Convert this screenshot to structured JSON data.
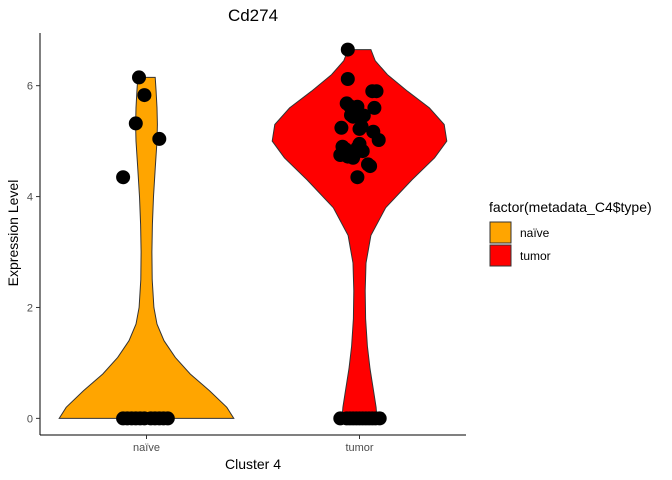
{
  "chart_data": {
    "type": "violin",
    "title": "Cd274",
    "xlabel": "Cluster 4",
    "ylabel": "Expression Level",
    "ylim": [
      -0.3,
      6.95
    ],
    "yticks": [
      0,
      2,
      4,
      6
    ],
    "categories": [
      "naïve",
      "tumor"
    ],
    "legend": {
      "title": "factor(metadata_C4$type)",
      "position": "right",
      "items": [
        {
          "label": "naïve",
          "color": "#FFA500"
        },
        {
          "label": "tumor",
          "color": "#FF0000"
        }
      ]
    },
    "groups": [
      {
        "name": "naïve",
        "color": "#FFA500",
        "max": 6.15,
        "density_profile": [
          [
            0.0,
            1.0
          ],
          [
            0.2,
            0.92
          ],
          [
            0.5,
            0.72
          ],
          [
            0.8,
            0.5
          ],
          [
            1.1,
            0.33
          ],
          [
            1.4,
            0.2
          ],
          [
            1.7,
            0.12
          ],
          [
            2.0,
            0.085
          ],
          [
            2.5,
            0.065
          ],
          [
            3.0,
            0.062
          ],
          [
            3.5,
            0.068
          ],
          [
            4.0,
            0.08
          ],
          [
            4.5,
            0.1
          ],
          [
            5.0,
            0.12
          ],
          [
            5.3,
            0.125
          ],
          [
            5.6,
            0.12
          ],
          [
            5.9,
            0.11
          ],
          [
            6.15,
            0.1
          ]
        ],
        "points": [
          {
            "jitter": -0.22,
            "y": 4.35
          },
          {
            "jitter": -0.07,
            "y": 6.15
          },
          {
            "jitter": -0.1,
            "y": 5.32
          },
          {
            "jitter": -0.02,
            "y": 5.83
          },
          {
            "jitter": 0.12,
            "y": 5.04
          },
          {
            "jitter": -0.22,
            "y": 0
          },
          {
            "jitter": -0.18,
            "y": 0
          },
          {
            "jitter": -0.14,
            "y": 0
          },
          {
            "jitter": -0.1,
            "y": 0
          },
          {
            "jitter": -0.06,
            "y": 0
          },
          {
            "jitter": -0.02,
            "y": 0
          },
          {
            "jitter": 0.04,
            "y": 0
          },
          {
            "jitter": 0.08,
            "y": 0
          },
          {
            "jitter": 0.12,
            "y": 0
          },
          {
            "jitter": 0.16,
            "y": 0
          },
          {
            "jitter": 0.2,
            "y": 0
          }
        ]
      },
      {
        "name": "tumor",
        "color": "#FF0000",
        "max": 6.65,
        "density_profile": [
          [
            0.0,
            0.2
          ],
          [
            0.2,
            0.19
          ],
          [
            0.5,
            0.16
          ],
          [
            0.9,
            0.12
          ],
          [
            1.3,
            0.09
          ],
          [
            1.8,
            0.07
          ],
          [
            2.3,
            0.065
          ],
          [
            2.8,
            0.075
          ],
          [
            3.3,
            0.13
          ],
          [
            3.8,
            0.3
          ],
          [
            4.3,
            0.6
          ],
          [
            4.7,
            0.86
          ],
          [
            5.0,
            1.0
          ],
          [
            5.3,
            0.97
          ],
          [
            5.6,
            0.8
          ],
          [
            5.9,
            0.55
          ],
          [
            6.2,
            0.32
          ],
          [
            6.45,
            0.18
          ],
          [
            6.65,
            0.13
          ]
        ],
        "points": [
          {
            "jitter": -0.18,
            "y": 0
          },
          {
            "jitter": -0.12,
            "y": 0
          },
          {
            "jitter": -0.09,
            "y": 0
          },
          {
            "jitter": -0.06,
            "y": 0
          },
          {
            "jitter": -0.03,
            "y": 0
          },
          {
            "jitter": 0.0,
            "y": 0
          },
          {
            "jitter": 0.03,
            "y": 0
          },
          {
            "jitter": 0.06,
            "y": 0
          },
          {
            "jitter": 0.09,
            "y": 0
          },
          {
            "jitter": 0.12,
            "y": 0
          },
          {
            "jitter": 0.15,
            "y": 0
          },
          {
            "jitter": 0.19,
            "y": 0
          },
          {
            "jitter": -0.11,
            "y": 6.65
          },
          {
            "jitter": -0.11,
            "y": 6.12
          },
          {
            "jitter": 0.12,
            "y": 5.9
          },
          {
            "jitter": 0.16,
            "y": 5.9
          },
          {
            "jitter": -0.12,
            "y": 5.68
          },
          {
            "jitter": -0.09,
            "y": 5.63
          },
          {
            "jitter": -0.04,
            "y": 5.6
          },
          {
            "jitter": -0.02,
            "y": 5.62
          },
          {
            "jitter": 0.14,
            "y": 5.6
          },
          {
            "jitter": -0.08,
            "y": 5.47
          },
          {
            "jitter": -0.06,
            "y": 5.44
          },
          {
            "jitter": 0.04,
            "y": 5.46
          },
          {
            "jitter": -0.17,
            "y": 5.24
          },
          {
            "jitter": 0.0,
            "y": 5.22
          },
          {
            "jitter": 0.02,
            "y": 5.26
          },
          {
            "jitter": 0.13,
            "y": 5.17
          },
          {
            "jitter": 0.18,
            "y": 5.02
          },
          {
            "jitter": -0.16,
            "y": 4.9
          },
          {
            "jitter": -0.18,
            "y": 4.75
          },
          {
            "jitter": -0.13,
            "y": 4.85
          },
          {
            "jitter": -0.11,
            "y": 4.72
          },
          {
            "jitter": -0.08,
            "y": 4.8
          },
          {
            "jitter": -0.06,
            "y": 4.7
          },
          {
            "jitter": -0.04,
            "y": 4.78
          },
          {
            "jitter": -0.02,
            "y": 4.88
          },
          {
            "jitter": 0.0,
            "y": 4.95
          },
          {
            "jitter": 0.03,
            "y": 4.82
          },
          {
            "jitter": 0.08,
            "y": 4.58
          },
          {
            "jitter": 0.1,
            "y": 4.55
          },
          {
            "jitter": -0.02,
            "y": 4.35
          }
        ]
      }
    ]
  }
}
